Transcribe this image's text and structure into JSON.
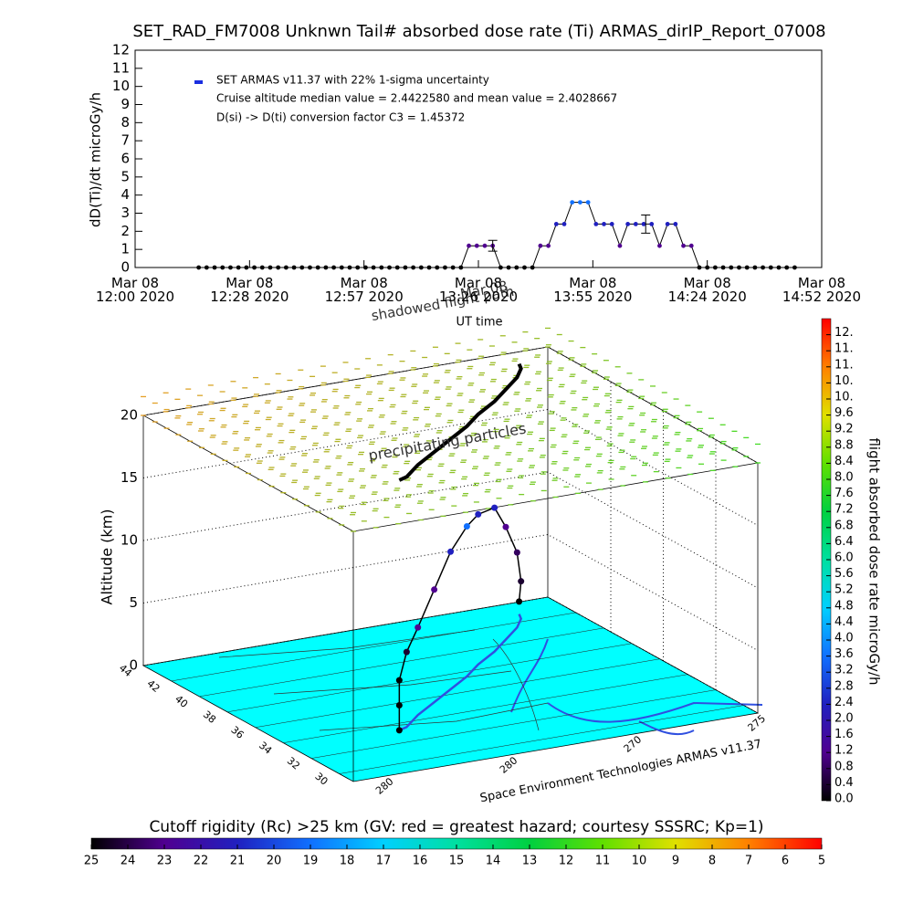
{
  "chart_data": [
    {
      "type": "line",
      "title": "SET_RAD_FM7008  Unknwn Tail#  absorbed dose rate (Ti) ARMAS_dirIP_Report_07008",
      "y_label": "dD(Ti)/dt microGy/h",
      "x_label": "UT time",
      "xlim": [
        0,
        172.8
      ],
      "xticks": [
        {
          "value": 0,
          "label": "Mar 08\n12:00 2020"
        },
        {
          "value": 28.8,
          "label": "Mar 08\n12:28 2020"
        },
        {
          "value": 57.6,
          "label": "Mar 08\n12:57 2020"
        },
        {
          "value": 86.4,
          "label": "Mar 08\n13:26 2020"
        },
        {
          "value": 115.2,
          "label": "Mar 08\n13:55 2020"
        },
        {
          "value": 144,
          "label": "Mar 08\n14:24 2020"
        },
        {
          "value": 172.8,
          "label": "Mar 08\n14:52 2020"
        }
      ],
      "ylim": [
        0,
        12
      ],
      "yticks": [
        0,
        1,
        2,
        3,
        4,
        5,
        6,
        7,
        8,
        9,
        10,
        11,
        12
      ],
      "x": [
        16,
        18,
        20,
        22,
        24,
        26,
        28,
        30,
        32,
        34,
        36,
        38,
        40,
        42,
        44,
        46,
        48,
        50,
        52,
        54,
        56,
        58,
        60,
        62,
        64,
        66,
        68,
        70,
        72,
        74,
        76,
        78,
        80,
        82,
        84,
        86,
        88,
        90,
        92,
        94,
        96,
        98,
        100,
        102,
        104,
        106,
        108,
        110,
        112,
        114,
        116,
        118,
        120,
        122,
        124,
        126,
        128,
        130,
        132,
        134,
        136,
        138,
        140,
        142,
        144,
        146,
        148,
        150,
        152,
        154,
        156,
        158,
        160,
        162,
        164,
        166
      ],
      "series": [
        {
          "name": "SET ARMAS v11.37 with 22% 1-sigma uncertainty",
          "color": "#1a2ee0",
          "values": [
            0,
            0,
            0,
            0,
            0,
            0,
            0,
            0,
            0,
            0,
            0,
            0,
            0,
            0,
            0,
            0,
            0,
            0,
            0,
            0,
            0,
            0,
            0,
            0,
            0,
            0,
            0,
            0,
            0,
            0,
            0,
            0,
            0,
            0,
            1.2,
            1.2,
            1.2,
            1.2,
            0,
            0,
            0,
            0,
            0,
            1.2,
            1.2,
            2.4,
            2.4,
            3.6,
            3.6,
            3.6,
            2.4,
            2.4,
            2.4,
            1.2,
            2.4,
            2.4,
            2.4,
            2.4,
            1.2,
            2.4,
            2.4,
            1.2,
            1.2,
            0,
            0,
            0,
            0,
            0,
            0,
            0,
            0,
            0,
            0,
            0,
            0,
            0
          ]
        }
      ],
      "error_bars": {
        "x": [
          90,
          128.5
        ],
        "values": [
          1.2,
          2.4
        ],
        "errors": [
          0.3,
          0.5
        ]
      },
      "legend_notes": [
        "Cruise altitude median value = 2.4422580 and mean value = 2.4028667",
        "D(si) -> D(ti) conversion factor C3 = 1.45372"
      ]
    },
    {
      "type": "flight3d",
      "z_label": "Altitude (km)",
      "zlim": [
        0,
        20
      ],
      "zticks": [
        0,
        5,
        10,
        15,
        20
      ],
      "latlim": [
        44,
        29
      ],
      "latticks": [
        44,
        42,
        40,
        38,
        36,
        34,
        32,
        30
      ],
      "lonlim": [
        282,
        274
      ],
      "lon_labels": [
        "280",
        "280",
        "270",
        "275"
      ],
      "series": {
        "lat": [
          33.3,
          33.3,
          33.3,
          33.5,
          34.5,
          35.5,
          36.5,
          37.5,
          38.5,
          39.5,
          40.5,
          41.5,
          42.3,
          42.8
        ],
        "lon": [
          279.9,
          279.9,
          279.9,
          279.7,
          279.2,
          278.6,
          278.0,
          277.4,
          276.9,
          276.3,
          275.8,
          275.3,
          275.0,
          274.9
        ],
        "alt": [
          0,
          2,
          4,
          6,
          7,
          9,
          11,
          12,
          12,
          11.5,
          9,
          6,
          3,
          1
        ],
        "dose": [
          0,
          0,
          0,
          0.4,
          1.2,
          1.2,
          2.4,
          3.6,
          2.4,
          2.4,
          1.2,
          0.8,
          0.4,
          0
        ]
      },
      "annotations": [
        "precipitating particles",
        "shadowed flight path",
        "Mar 08"
      ],
      "credit": "Space Environment Technologies ARMAS v11.37"
    },
    {
      "type": "colorbar",
      "title": "flight absorbed dose rate microGy/h",
      "clim": [
        0,
        12
      ],
      "colors": [
        "#000000",
        "#500090",
        "#2020c0",
        "#1070ff",
        "#00d0ff",
        "#00e0a0",
        "#00d040",
        "#60e000",
        "#e0e000",
        "#ff8000",
        "#ff0000"
      ],
      "ticks": [
        {
          "value": 0,
          "label": "0.0"
        },
        0.4,
        0.8,
        1.2,
        1.6,
        {
          "value": 2,
          "label": "2.0"
        },
        2.4,
        2.8,
        3.2,
        3.6,
        {
          "value": 4,
          "label": "4.0"
        },
        4.4,
        4.8,
        5.2,
        5.6,
        {
          "value": 6,
          "label": "6.0"
        },
        6.4,
        6.8,
        7.2,
        7.6,
        {
          "value": 8,
          "label": "8.0"
        },
        8.4,
        8.8,
        9.2,
        9.6,
        {
          "value": 10,
          "label": "10."
        },
        {
          "value": 10.4,
          "label": "10."
        },
        {
          "value": 10.8,
          "label": "11."
        },
        {
          "value": 11.2,
          "label": "11."
        },
        {
          "value": 11.6,
          "label": "12."
        }
      ]
    },
    {
      "type": "colorbar",
      "title": "Cutoff rigidity (Rc) >25 km (GV: red = greatest hazard; courtesy SSSRC; Kp=1)",
      "clim": [
        25,
        5
      ],
      "colors": [
        "#000000",
        "#500090",
        "#2020c0",
        "#1070ff",
        "#00d0ff",
        "#00e0a0",
        "#00d040",
        "#60e000",
        "#e0e000",
        "#ff8000",
        "#ff0000"
      ],
      "ticks": [
        25,
        24,
        23,
        22,
        21,
        20,
        19,
        18,
        17,
        16,
        15,
        14,
        13,
        12,
        11,
        10,
        9,
        8,
        7,
        6,
        5
      ]
    }
  ]
}
